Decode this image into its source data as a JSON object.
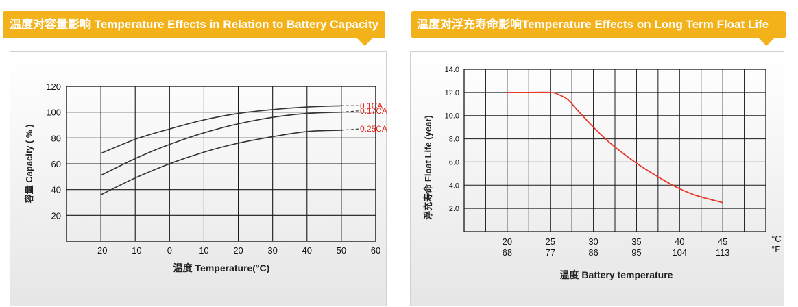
{
  "left_title": "温度对容量影响 Temperature Effects in Relation to Battery Capacity",
  "right_title": "温度对浮充寿命影响Temperature Effects on Long Term Float Life",
  "colors": {
    "tab": "#f4b21a",
    "tab_text": "#ffffff",
    "curve_left": "#333333",
    "curve_right": "#e83a2a",
    "series_label": "#e8231a"
  },
  "chart_data": [
    {
      "type": "line",
      "title": "温度对容量影响 Temperature Effects in Relation to Battery Capacity",
      "xlabel": "温度  Temperature(°C)",
      "ylabel": "容量 Capacity ( % )",
      "xlim": [
        -30,
        60
      ],
      "ylim": [
        0,
        120
      ],
      "x_ticks": [
        "-20",
        "-10",
        "0",
        "10",
        "20",
        "30",
        "40",
        "50",
        "60"
      ],
      "y_ticks": [
        "20",
        "40",
        "60",
        "80",
        "100",
        "120"
      ],
      "grid": true,
      "series": [
        {
          "name": "0.1CA",
          "x": [
            -20,
            -10,
            0,
            10,
            20,
            30,
            40,
            50
          ],
          "y": [
            68,
            79,
            87,
            94,
            99,
            102,
            104,
            105
          ],
          "dashed_to": [
            55,
            105
          ]
        },
        {
          "name": "0.17CA",
          "x": [
            -20,
            -10,
            0,
            10,
            20,
            30,
            40,
            50
          ],
          "y": [
            51,
            64,
            75,
            84,
            91,
            96,
            99,
            100
          ],
          "dashed_to": [
            55,
            101
          ]
        },
        {
          "name": "0.25CA",
          "x": [
            -20,
            -10,
            0,
            10,
            20,
            30,
            40,
            50
          ],
          "y": [
            36,
            49,
            60,
            69,
            76,
            81,
            85,
            86
          ],
          "dashed_to": [
            55,
            87
          ]
        }
      ]
    },
    {
      "type": "line",
      "title": "温度对浮充寿命影响Temperature Effects on Long Term Float Life",
      "xlabel": "温度  Battery temperature",
      "ylabel": "浮充寿命  Float Life (year)",
      "xlim": [
        15,
        50
      ],
      "ylim": [
        0,
        14
      ],
      "x_ticks_c": [
        "20",
        "25",
        "30",
        "35",
        "40",
        "45"
      ],
      "x_ticks_f": [
        "68",
        "77",
        "86",
        "95",
        "104",
        "113"
      ],
      "unit_c": "°C",
      "unit_f": "°F",
      "y_ticks": [
        "2.0",
        "4.0",
        "6.0",
        "8.0",
        "10.0",
        "12.0",
        "14.0"
      ],
      "grid": true,
      "series": [
        {
          "x": [
            20,
            22,
            25,
            26,
            27,
            28,
            30,
            32,
            35,
            38,
            40,
            42,
            45
          ],
          "y": [
            12.0,
            12.0,
            12.0,
            11.8,
            11.4,
            10.6,
            9.0,
            7.6,
            5.9,
            4.5,
            3.7,
            3.1,
            2.5
          ]
        }
      ]
    }
  ]
}
